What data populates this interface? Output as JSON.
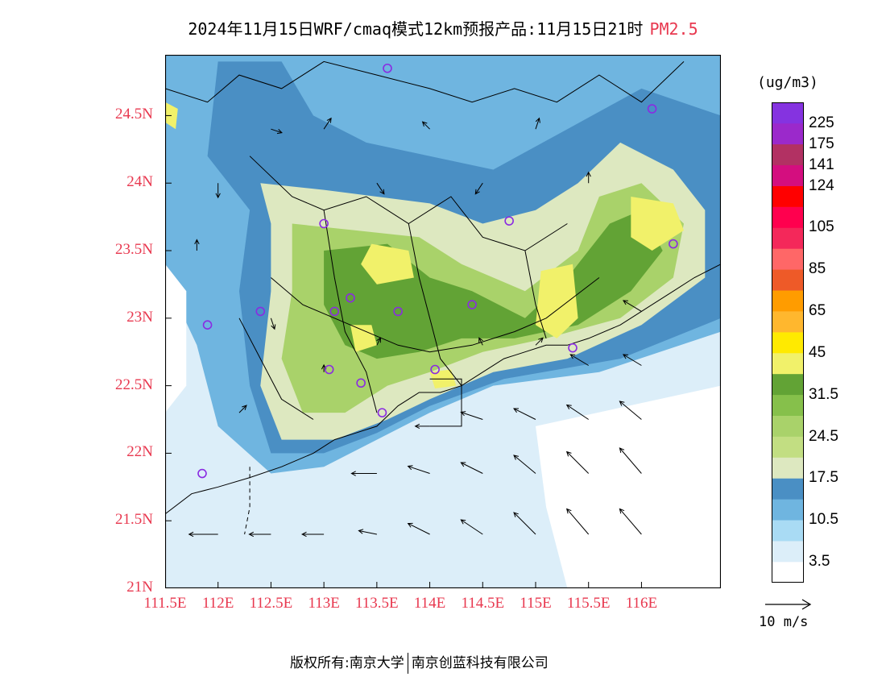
{
  "title": {
    "main": "2024年11月15日WRF/cmaq模式12km预报产品:11月15日21时",
    "species": "PM2.5",
    "species_color": "#e8384f"
  },
  "axes": {
    "lon_labels": [
      "111.5E",
      "112E",
      "112.5E",
      "113E",
      "113.5E",
      "114E",
      "114.5E",
      "115E",
      "115.5E",
      "116E"
    ],
    "lon_values": [
      111.5,
      112,
      112.5,
      113,
      113.5,
      114,
      114.5,
      115,
      115.5,
      116
    ],
    "lat_labels": [
      "24.5N",
      "24N",
      "23.5N",
      "23N",
      "22.5N",
      "22N",
      "21.5N",
      "21N"
    ],
    "lat_values": [
      24.5,
      24,
      23.5,
      23,
      22.5,
      22,
      21.5,
      21
    ],
    "lon_range": [
      111.5,
      116.75
    ],
    "lat_range": [
      21.0,
      24.95
    ],
    "label_color": "#e8384f"
  },
  "colorbar": {
    "unit": "(ug/m3)",
    "colors": [
      "#ffffff",
      "#dceef9",
      "#a9dbf4",
      "#6fb5e0",
      "#4a8fc4",
      "#dde8c0",
      "#c2de82",
      "#a9d26a",
      "#86c04b",
      "#62a335",
      "#f1f16a",
      "#ffea00",
      "#ffb72e",
      "#ff9c00",
      "#ee5a28",
      "#ff6767",
      "#f4285a",
      "#ff004e",
      "#ff0000",
      "#d40e7f",
      "#b23163",
      "#9b29cb",
      "#8533e0"
    ],
    "labels": [
      "3.5",
      "10.5",
      "17.5",
      "24.5",
      "31.5",
      "45",
      "65",
      "85",
      "105",
      "124",
      "141",
      "175",
      "225"
    ],
    "label_boundaries": [
      1,
      3,
      5,
      7,
      9,
      11,
      13,
      15,
      17,
      19,
      20,
      21,
      22
    ]
  },
  "vector_reference": {
    "label": "10 m/s"
  },
  "stations": {
    "color": "#8a2be2",
    "points": [
      [
        113.6,
        24.85
      ],
      [
        116.1,
        24.55
      ],
      [
        113.0,
        23.7
      ],
      [
        114.75,
        23.72
      ],
      [
        116.3,
        23.55
      ],
      [
        113.25,
        23.15
      ],
      [
        113.1,
        23.05
      ],
      [
        112.4,
        23.05
      ],
      [
        111.9,
        22.95
      ],
      [
        113.7,
        23.05
      ],
      [
        114.4,
        23.1
      ],
      [
        115.35,
        22.78
      ],
      [
        113.05,
        22.62
      ],
      [
        113.35,
        22.52
      ],
      [
        114.05,
        22.62
      ],
      [
        113.55,
        22.3
      ],
      [
        111.85,
        21.85
      ]
    ]
  },
  "footer": {
    "left": "版权所有:南京大学",
    "right": "南京创蓝科技有限公司"
  }
}
